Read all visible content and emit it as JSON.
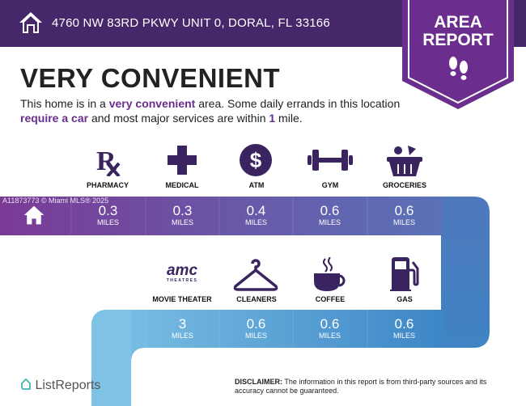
{
  "header": {
    "address": "4760 NW 83RD PKWY UNIT 0, DORAL, FL 33166",
    "home_icon": "house-icon"
  },
  "badge": {
    "line1": "AREA",
    "line2": "REPORT",
    "icon": "footprints-icon",
    "color": "#6b2e8e"
  },
  "headline": "VERY CONVENIENT",
  "description": {
    "p1": "This home is in a ",
    "b1": "very convenient",
    "p2": " area. Some daily errands in this location ",
    "b2": "require a car",
    "p3": " and most major services are within ",
    "b3": "1",
    "p4": " mile."
  },
  "watermark": "A11873773 © Miami MLS® 2025",
  "row1": [
    {
      "label": "PHARMACY",
      "value": "0.3",
      "unit": "MILES",
      "icon": "rx-icon"
    },
    {
      "label": "MEDICAL",
      "value": "0.3",
      "unit": "MILES",
      "icon": "medical-cross-icon"
    },
    {
      "label": "ATM",
      "value": "0.4",
      "unit": "MILES",
      "icon": "dollar-icon"
    },
    {
      "label": "GYM",
      "value": "0.6",
      "unit": "MILES",
      "icon": "dumbbell-icon"
    },
    {
      "label": "GROCERIES",
      "value": "0.6",
      "unit": "MILES",
      "icon": "grocery-basket-icon"
    }
  ],
  "row2": [
    {
      "label": "MOVIE THEATER",
      "value": "3",
      "unit": "MILES",
      "icon": "amc-theatres-logo",
      "logo_text": "amc THEATRES"
    },
    {
      "label": "CLEANERS",
      "value": "0.6",
      "unit": "MILES",
      "icon": "hanger-icon"
    },
    {
      "label": "COFFEE",
      "value": "0.6",
      "unit": "MILES",
      "icon": "coffee-cup-icon"
    },
    {
      "label": "GAS",
      "value": "0.6",
      "unit": "MILES",
      "icon": "gas-pump-icon"
    }
  ],
  "footer": {
    "brand": "ListReports",
    "disclaimer_bold": "DISCLAIMER:",
    "disclaimer": " The information in this report is from third-party sources and its accuracy cannot be guaranteed."
  },
  "colors": {
    "header": "#46286a",
    "icon": "#3a2460",
    "row1_start": "#7a3a96",
    "row1_end": "#5a72b8",
    "row2_start": "#7ec3e6",
    "row2_end": "#3d86c6"
  }
}
